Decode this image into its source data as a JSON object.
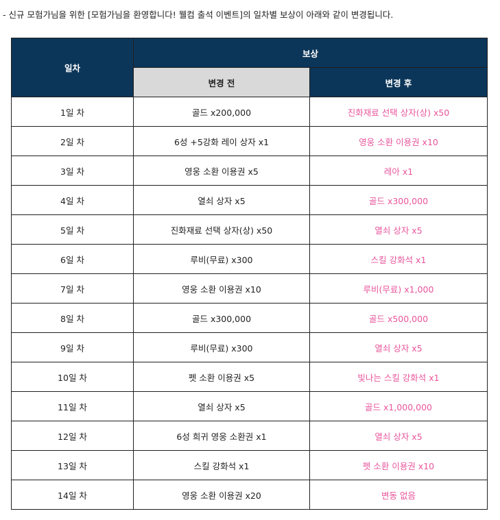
{
  "notice": "- 신규 모험가님을 위한 [모험가님을 환영합니다! 웰컴 출석 이벤트]의 일차별 보상이 아래와 같이 변경됩니다.",
  "table": {
    "day_header": "일차",
    "reward_header": "보상",
    "before_header": "변경 전",
    "after_header": "변경 후",
    "rows": [
      {
        "day": "1일 차",
        "before": "골드 x200,000",
        "after": "진화재료 선택 상자(상) x50"
      },
      {
        "day": "2일 차",
        "before": "6성 +5강화 레이 상자 x1",
        "after": "영웅 소환 이용권 x10"
      },
      {
        "day": "3일 차",
        "before": "영웅 소환 이용권 x5",
        "after": "레아 x1"
      },
      {
        "day": "4일 차",
        "before": "열쇠 상자 x5",
        "after": "골드 x300,000"
      },
      {
        "day": "5일 차",
        "before": "진화재료 선택 상자(상) x50",
        "after": "열쇠 상자 x5"
      },
      {
        "day": "6일 차",
        "before": "루비(무료) x300",
        "after": "스킬 강화석 x1"
      },
      {
        "day": "7일 차",
        "before": "영웅 소환 이용권 x10",
        "after": "루비(무료) x1,000"
      },
      {
        "day": "8일 차",
        "before": "골드 x300,000",
        "after": "골드 x500,000"
      },
      {
        "day": "9일 차",
        "before": "루비(무료) x300",
        "after": "열쇠 상자 x5"
      },
      {
        "day": "10일 차",
        "before": "펫 소환 이용권 x5",
        "after": "빛나는 스킬 강화석 x1"
      },
      {
        "day": "11일 차",
        "before": "열쇠 상자 x5",
        "after": "골드 x1,000,000"
      },
      {
        "day": "12일 차",
        "before": "6성 희귀 영웅 소환권 x1",
        "after": "열쇠 상자 x5"
      },
      {
        "day": "13일 차",
        "before": "스킬 강화석 x1",
        "after": "펫 소환 이용권 x10"
      },
      {
        "day": "14일 차",
        "before": "영웅 소환 이용권 x20",
        "after": "변동 없음"
      }
    ]
  },
  "colors": {
    "header_dark": "#0c3659",
    "header_light": "#d9d9d9",
    "after_text": "#e8559b"
  }
}
